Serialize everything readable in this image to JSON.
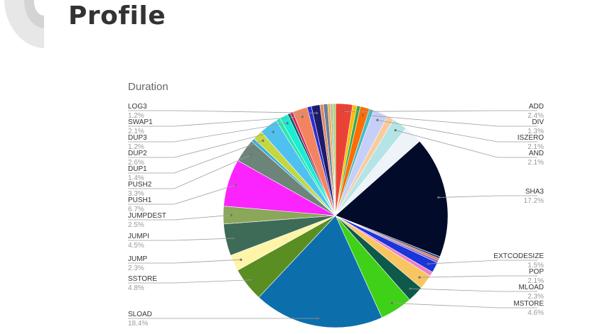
{
  "page": {
    "title": "Profile"
  },
  "chart_data": {
    "type": "pie",
    "title": "Duration",
    "slices": [
      {
        "label": "ADD",
        "value": 2.4,
        "percent_text": "2.4%",
        "color": "#ea4335"
      },
      {
        "label": "",
        "value": 0.6,
        "color": "#fbbc04"
      },
      {
        "label": "",
        "value": 0.5,
        "color": "#34a853"
      },
      {
        "label": "DIV",
        "value": 1.3,
        "percent_text": "1.3%",
        "color": "#ff6d01"
      },
      {
        "label": "",
        "value": 0.6,
        "color": "#46bdc6"
      },
      {
        "label": "ISZERO",
        "value": 2.1,
        "percent_text": "2.1%",
        "color": "#c6cff7"
      },
      {
        "label": "",
        "value": 1.0,
        "color": "#f9cb9c"
      },
      {
        "label": "AND",
        "value": 2.1,
        "percent_text": "2.1%",
        "color": "#b4e4e6"
      },
      {
        "label": "",
        "value": 2.6,
        "color": "#eef2f9"
      },
      {
        "label": "SHA3",
        "value": 17.2,
        "percent_text": "17.2%",
        "color": "#020c2a"
      },
      {
        "label": "",
        "value": 0.3,
        "color": "#294a8f"
      },
      {
        "label": "",
        "value": 0.3,
        "color": "#e8703a"
      },
      {
        "label": "",
        "value": 0.3,
        "color": "#7a5bd6"
      },
      {
        "label": "EXTCODESIZE",
        "value": 1.5,
        "percent_text": "1.5%",
        "color": "#1a35d9"
      },
      {
        "label": "",
        "value": 0.6,
        "color": "#ee7cc8"
      },
      {
        "label": "POP",
        "value": 2.1,
        "percent_text": "2.1%",
        "color": "#f8c560"
      },
      {
        "label": "MLOAD",
        "value": 2.3,
        "percent_text": "2.3%",
        "color": "#0e5a4a"
      },
      {
        "label": "MSTORE",
        "value": 4.6,
        "percent_text": "4.6%",
        "color": "#3fd118"
      },
      {
        "label": "SLOAD",
        "value": 18.4,
        "percent_text": "18.4%",
        "color": "#0c6fac"
      },
      {
        "label": "SSTORE",
        "value": 4.8,
        "percent_text": "4.8%",
        "color": "#5a8e23"
      },
      {
        "label": "JUMP",
        "value": 2.3,
        "percent_text": "2.3%",
        "color": "#fff4a8"
      },
      {
        "label": "JUMPI",
        "value": 4.5,
        "percent_text": "4.5%",
        "color": "#3d6b58"
      },
      {
        "label": "JUMPDEST",
        "value": 2.5,
        "percent_text": "2.5%",
        "color": "#8ba75a"
      },
      {
        "label": "PUSH1",
        "value": 6.7,
        "percent_text": "6.7%",
        "color": "#fb24ff"
      },
      {
        "label": "PUSH2",
        "value": 3.3,
        "percent_text": "3.3%",
        "color": "#6d8578"
      },
      {
        "label": "",
        "value": 0.5,
        "color": "#3aaed8"
      },
      {
        "label": "DUP1",
        "value": 1.4,
        "percent_text": "1.4%",
        "color": "#c5d740"
      },
      {
        "label": "DUP2",
        "value": 2.6,
        "percent_text": "2.6%",
        "color": "#4fc1f1"
      },
      {
        "label": "",
        "value": 0.6,
        "color": "#2ce6a7"
      },
      {
        "label": "DUP3",
        "value": 1.2,
        "percent_text": "1.2%",
        "color": "#19ecd7"
      },
      {
        "label": "",
        "value": 0.4,
        "color": "#00695c"
      },
      {
        "label": "",
        "value": 0.4,
        "color": "#d81b60"
      },
      {
        "label": "SWAP1",
        "value": 2.1,
        "percent_text": "2.1%",
        "color": "#f4845f"
      },
      {
        "label": "",
        "value": 0.6,
        "color": "#2b2fd0"
      },
      {
        "label": "LOG3",
        "value": 1.2,
        "percent_text": "1.2%",
        "color": "#1c1c6b"
      },
      {
        "label": "",
        "value": 0.5,
        "color": "#e08960"
      },
      {
        "label": "",
        "value": 0.6,
        "color": "#6e7d9b"
      },
      {
        "label": "",
        "value": 0.4,
        "color": "#e8b44a"
      },
      {
        "label": "",
        "value": 0.3,
        "color": "#b0aeb2"
      },
      {
        "label": "",
        "value": 0.4,
        "color": "#a3d975"
      }
    ]
  }
}
